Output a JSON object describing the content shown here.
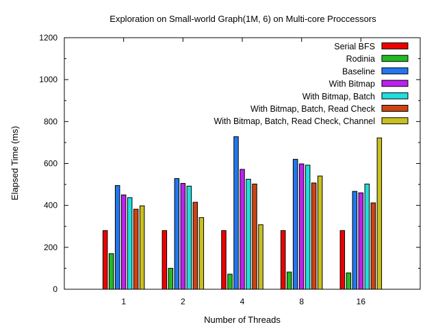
{
  "chart_data": {
    "type": "bar",
    "title": "Exploration on Small-world Graph(1M, 6) on Multi-core Proccessors",
    "xlabel": "Number of Threads",
    "ylabel": "Elapsed Time (ms)",
    "ylim": [
      0,
      1200
    ],
    "yticks": [
      0,
      200,
      400,
      600,
      800,
      1000,
      1200
    ],
    "categories": [
      "1",
      "2",
      "4",
      "8",
      "16"
    ],
    "legend_position": "top-right",
    "grid": false,
    "series": [
      {
        "name": "Serial BFS",
        "color": "#ee0000",
        "values": [
          280,
          280,
          280,
          280,
          280
        ]
      },
      {
        "name": "Rodinia",
        "color": "#22bb22",
        "values": [
          170,
          100,
          72,
          82,
          78
        ]
      },
      {
        "name": "Baseline",
        "color": "#2277ee",
        "values": [
          495,
          528,
          728,
          620,
          467
        ]
      },
      {
        "name": "With Bitmap",
        "color": "#bb22ee",
        "values": [
          450,
          505,
          572,
          598,
          460
        ]
      },
      {
        "name": "With Bitmap, Batch",
        "color": "#22dddd",
        "values": [
          437,
          492,
          525,
          592,
          502
        ]
      },
      {
        "name": "With Bitmap, Batch, Read Check",
        "color": "#cc4411",
        "values": [
          382,
          415,
          502,
          507,
          412
        ]
      },
      {
        "name": "With Bitmap, Batch, Read Check, Channel",
        "color": "#c8c020",
        "values": [
          398,
          342,
          308,
          540,
          722
        ]
      }
    ]
  }
}
